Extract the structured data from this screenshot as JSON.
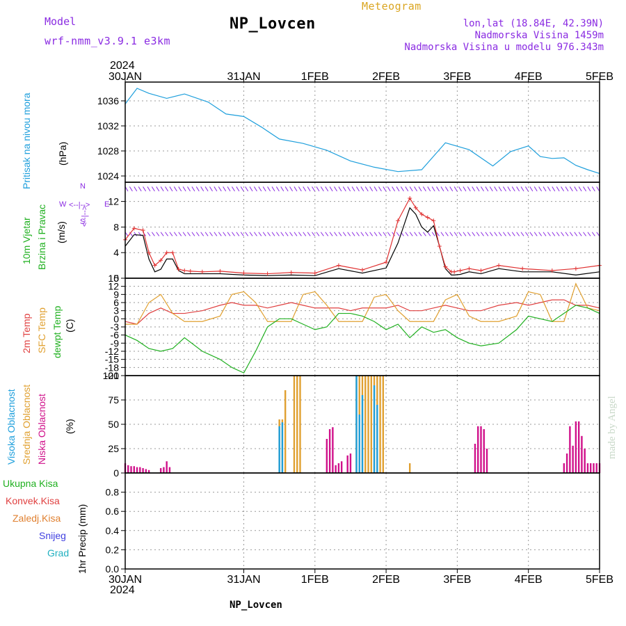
{
  "header": {
    "model_label": "Model",
    "model_name": "wrf-nmm_v3.9.1 e3km",
    "meteogram_label": "Meteogram",
    "station": "NP_Lovcen",
    "lonlat": "lon,lat (18.84E, 42.39N)",
    "elevation": "Nadmorska Visina 1459m",
    "model_elevation": "Nadmorska Visina u modelu 976.343m",
    "year_top": "2024",
    "year_bottom": "2024",
    "footer_station": "NP_Lovcen",
    "credit": "made by Angel"
  },
  "colors": {
    "pressure": "#1e9fdc",
    "wind_speed": "#000000",
    "wind_gust": "#e03030",
    "temp2m": "#e04040",
    "sfc": "#e0a030",
    "dew": "#20b020",
    "cloud_high": "#1e9fdc",
    "cloud_mid": "#e0a030",
    "cloud_low": "#d0108a",
    "purple": "#8a2be2"
  },
  "dates": [
    "30JAN",
    "31JAN",
    "1FEB",
    "2FEB",
    "3FEB",
    "4FEB",
    "5FEB"
  ],
  "panels": {
    "pressure": {
      "label": "Pritisak na nivou mora",
      "unit": "(hPa)"
    },
    "wind": {
      "label1": "10m Vjetar",
      "label2": "Brzina i Pravac",
      "unit": "(m/s)",
      "compass_n": "N",
      "compass_s": "S",
      "compass_e": "E",
      "compass_w": "W",
      "compass_arrow_v": "<--|-->",
      "compass_arrow_h": "<--|-->"
    },
    "temp": {
      "label1": "2m Temp",
      "label2": "SFC Temp",
      "label3": "dewpt Temp",
      "unit": "(C)"
    },
    "cloud": {
      "label1": "Visoka Oblacnost",
      "label2": "Srednja Oblacnost",
      "label3": "Niska Oblacnost",
      "unit": "(%)"
    },
    "precip": {
      "unit": "1hr Precip (mm)",
      "legend": [
        "Ukupna Kisa",
        "Konvek.Kisa",
        "Zaledj.Kisa",
        "Snijeg",
        "Grad"
      ],
      "legend_colors": [
        "#20b020",
        "#e04040",
        "#e08030",
        "#4040e0",
        "#20b0c0"
      ]
    }
  },
  "chart_data": [
    {
      "type": "line",
      "ylabel": "(hPa)",
      "ylim": [
        1023,
        1039
      ],
      "yticks": [
        1024,
        1028,
        1032,
        1036
      ],
      "x": [
        0,
        4,
        8,
        14,
        20,
        28,
        34,
        40,
        46,
        52,
        60,
        68,
        76,
        84,
        92,
        100,
        108,
        116,
        124,
        130,
        136,
        140,
        144,
        148,
        152,
        156,
        160
      ],
      "series": [
        {
          "values": [
            1035.5,
            1038.0,
            1037.2,
            1036.4,
            1037.1,
            1035.8,
            1033.9,
            1033.5,
            1031.8,
            1029.9,
            1029.2,
            1028.1,
            1026.4,
            1025.4,
            1024.7,
            1025.0,
            1029.3,
            1028.2,
            1025.6,
            1027.9,
            1028.8,
            1027.1,
            1026.8,
            1026.9,
            1025.7,
            1025.0,
            1024.4
          ]
        }
      ]
    },
    {
      "type": "line",
      "ylabel": "(m/s)",
      "ylim": [
        0,
        15
      ],
      "yticks": [
        0,
        4,
        8,
        12
      ],
      "x": [
        0,
        3,
        6,
        8,
        10,
        12,
        14,
        16,
        18,
        20,
        22,
        26,
        32,
        40,
        48,
        56,
        64,
        72,
        80,
        88,
        92,
        96,
        98,
        100,
        102,
        104,
        106,
        108,
        110,
        111,
        113,
        116,
        120,
        126,
        134,
        144,
        152,
        160
      ],
      "series": [
        {
          "name": "wind speed",
          "values": [
            5.0,
            6.8,
            6.7,
            3.0,
            1.0,
            1.4,
            3.0,
            3.0,
            1.2,
            0.7,
            0.7,
            0.7,
            0.7,
            0.5,
            0.4,
            0.5,
            0.4,
            1.5,
            0.8,
            1.6,
            5.5,
            11.0,
            10.0,
            8.0,
            7.2,
            8.2,
            5.0,
            1.5,
            0.5,
            0.5,
            0.6,
            1.0,
            0.7,
            1.5,
            1.0,
            1.0,
            0.5,
            1.0
          ]
        },
        {
          "name": "wind gust",
          "values": [
            6.0,
            7.8,
            7.5,
            4.0,
            2.0,
            2.8,
            4.0,
            4.0,
            1.4,
            1.2,
            1.1,
            1.0,
            1.1,
            0.8,
            0.7,
            0.9,
            0.8,
            2.0,
            1.3,
            2.5,
            9.0,
            12.5,
            11.0,
            10.0,
            9.5,
            9.0,
            5.0,
            1.8,
            1.0,
            1.0,
            1.2,
            1.5,
            1.2,
            2.0,
            1.5,
            1.2,
            1.5,
            2.0
          ]
        }
      ]
    },
    {
      "type": "line",
      "ylabel": "(C)",
      "ylim": [
        -21,
        15
      ],
      "yticks": [
        -21,
        -18,
        -15,
        -12,
        -9,
        -6,
        -3,
        0,
        3,
        6,
        9,
        12,
        15
      ],
      "x": [
        0,
        4,
        8,
        12,
        16,
        20,
        26,
        32,
        36,
        40,
        44,
        48,
        52,
        56,
        60,
        64,
        68,
        72,
        76,
        80,
        84,
        88,
        92,
        96,
        100,
        104,
        108,
        112,
        116,
        120,
        126,
        132,
        136,
        140,
        144,
        148,
        152,
        156,
        160
      ],
      "series": [
        {
          "name": "2m Temp",
          "values": [
            -1,
            -2,
            2,
            4,
            2,
            2,
            3,
            5,
            6,
            5,
            5,
            4,
            5,
            6,
            5,
            4,
            4,
            4,
            3,
            4,
            4,
            4,
            5,
            3,
            3,
            4,
            5,
            4,
            3,
            3,
            5,
            6,
            5,
            6,
            7,
            7,
            5,
            5,
            4
          ]
        },
        {
          "name": "SFC Temp",
          "values": [
            -2,
            -2,
            6,
            9,
            2,
            -1,
            -1,
            1,
            9,
            10,
            6,
            -1,
            -1,
            -1,
            9,
            10,
            5,
            -1,
            -1,
            -1,
            8,
            9,
            3,
            -1,
            -1,
            -1,
            7,
            9,
            1,
            -1,
            -1,
            1,
            10,
            9,
            -1,
            -1,
            13,
            4,
            3
          ]
        },
        {
          "name": "dewpt Temp",
          "values": [
            -6,
            -8,
            -11,
            -12,
            -11,
            -7,
            -12,
            -15,
            -18,
            -20,
            -12,
            -3,
            0,
            0,
            -2,
            -4,
            -3,
            2,
            2,
            1,
            -1,
            -4,
            -2,
            -7,
            -3,
            -5,
            -4,
            -7,
            -9,
            -10,
            -9,
            -4,
            1,
            0,
            -1,
            2,
            5,
            4,
            2
          ]
        }
      ]
    },
    {
      "type": "bar",
      "ylabel": "(%)",
      "ylim": [
        0,
        100
      ],
      "yticks": [
        0,
        25,
        50,
        75,
        100
      ],
      "series": [
        {
          "name": "Visoka Oblacnost",
          "x": [
            52,
            53,
            78,
            79,
            80,
            84,
            85
          ],
          "values": [
            48,
            52,
            100,
            60,
            80,
            90,
            70
          ]
        },
        {
          "name": "Srednja Oblacnost",
          "x": [
            52,
            53,
            54,
            57,
            58,
            59,
            78,
            79,
            80,
            81,
            82,
            83,
            84,
            85,
            86,
            87,
            96
          ],
          "values": [
            55,
            55,
            85,
            100,
            100,
            100,
            100,
            100,
            100,
            100,
            100,
            100,
            100,
            100,
            100,
            100,
            10
          ]
        },
        {
          "name": "Niska Oblacnost",
          "x": [
            0,
            1,
            2,
            3,
            4,
            5,
            6,
            7,
            8,
            12,
            13,
            14,
            15,
            68,
            69,
            70,
            71,
            72,
            73,
            75,
            76,
            118,
            119,
            120,
            121,
            122,
            148,
            149,
            150,
            151,
            152,
            153,
            154,
            155,
            156,
            157,
            158,
            159,
            160
          ],
          "values": [
            10,
            8,
            7,
            7,
            6,
            6,
            5,
            4,
            3,
            5,
            6,
            12,
            6,
            35,
            45,
            47,
            8,
            10,
            12,
            18,
            20,
            30,
            48,
            48,
            45,
            25,
            10,
            20,
            48,
            28,
            53,
            53,
            38,
            25,
            10,
            10,
            10,
            10,
            10
          ]
        }
      ]
    },
    {
      "type": "line",
      "ylabel": "1hr Precip (mm)",
      "ylim": [
        0,
        1
      ],
      "yticks": [
        0,
        0.2,
        0.4,
        0.6,
        0.8
      ],
      "x": [
        0,
        160
      ],
      "series": [
        {
          "values": [
            0,
            0
          ]
        }
      ]
    }
  ]
}
